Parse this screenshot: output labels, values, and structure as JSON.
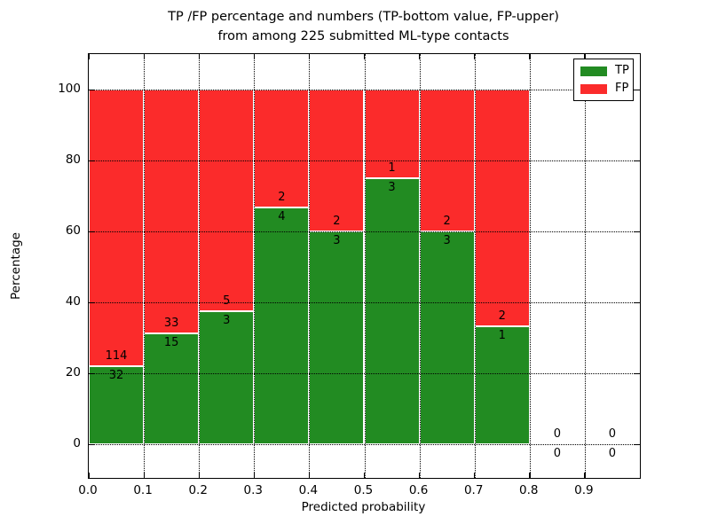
{
  "figure": {
    "title_line1": "TP /FP percentage and numbers (TP-bottom value, FP-upper)",
    "title_line2": "from among 225 submitted ML-type contacts",
    "xlabel": "Predicted probability",
    "ylabel": "Percentage"
  },
  "legend": {
    "items": [
      {
        "label": "TP",
        "color": "#228b22"
      },
      {
        "label": "FP",
        "color": "#fb2b2b"
      }
    ]
  },
  "chart_data": {
    "type": "bar",
    "stacked": true,
    "normalized_to_percent": 100,
    "title": "TP /FP percentage and numbers (TP-bottom value, FP-upper) from among 225 submitted ML-type contacts",
    "xlabel": "Predicted probability",
    "ylabel": "Percentage",
    "total_contacts": 225,
    "bin_width": 0.1,
    "bin_starts": [
      0.0,
      0.1,
      0.2,
      0.3,
      0.4,
      0.5,
      0.6,
      0.7,
      0.8,
      0.9
    ],
    "series": [
      {
        "name": "TP",
        "color": "#228b22",
        "counts": [
          32,
          15,
          3,
          4,
          3,
          3,
          3,
          1,
          0,
          0
        ],
        "pct": [
          21.92,
          31.25,
          37.5,
          66.67,
          60.0,
          75.0,
          60.0,
          33.33,
          0,
          0
        ]
      },
      {
        "name": "FP",
        "color": "#fb2b2b",
        "counts": [
          114,
          33,
          5,
          2,
          2,
          1,
          2,
          2,
          0,
          0
        ],
        "pct": [
          78.08,
          68.75,
          62.5,
          33.33,
          40.0,
          25.0,
          40.0,
          66.67,
          0,
          0
        ]
      }
    ],
    "x_ticks": [
      "0.0",
      "0.1",
      "0.2",
      "0.3",
      "0.4",
      "0.5",
      "0.6",
      "0.7",
      "0.8",
      "0.9"
    ],
    "y_ticks": [
      "0",
      "20",
      "40",
      "60",
      "80",
      "100"
    ],
    "xlim": [
      0.0,
      1.0
    ],
    "ylim": [
      -9.5,
      110
    ],
    "grid": "dotted",
    "legend_position": "upper right"
  }
}
